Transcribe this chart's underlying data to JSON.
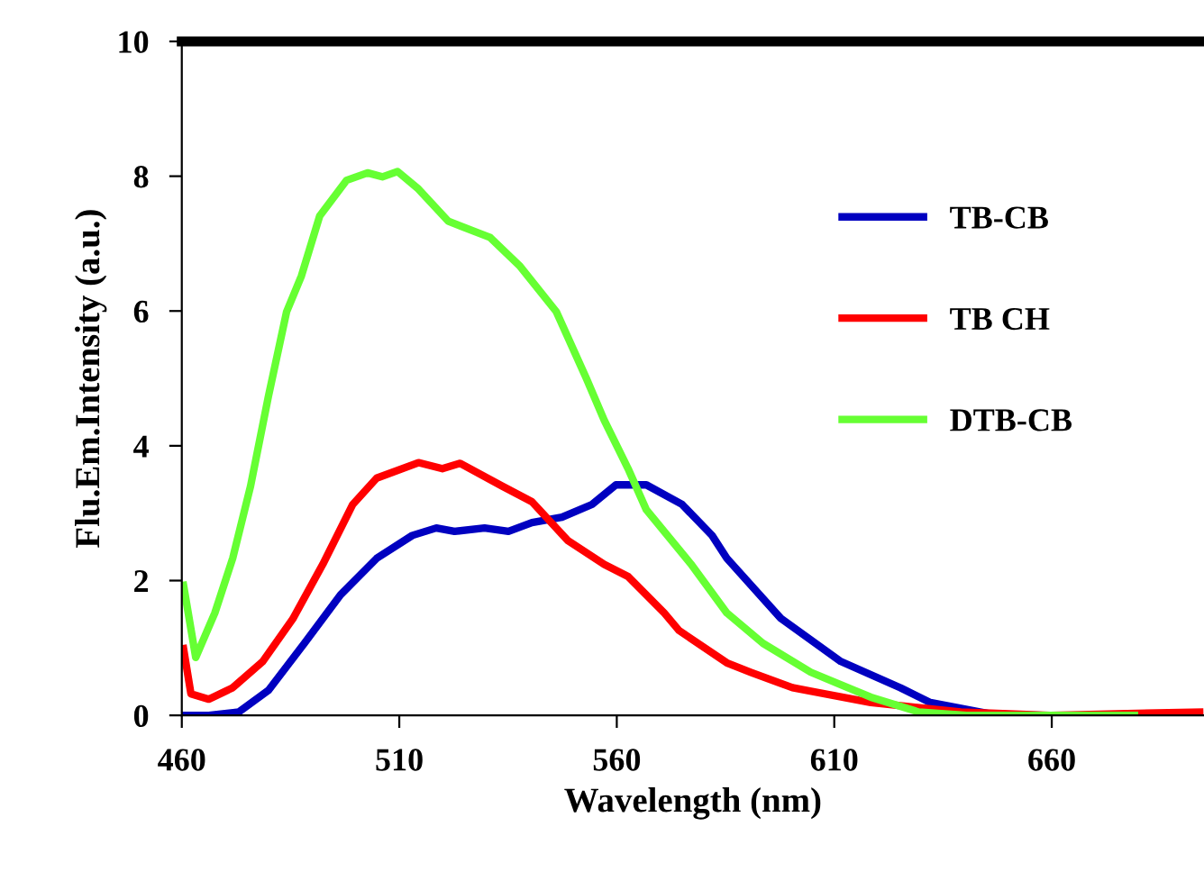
{
  "chart_data": {
    "type": "line",
    "xlabel": "Wavelength (nm)",
    "ylabel": "Flu.Em.Intensity (a.u.)",
    "xlim": [
      460,
      695
    ],
    "xticks": [
      460,
      510,
      560,
      610,
      660
    ],
    "ylim": [
      0,
      10
    ],
    "yticks": [
      0,
      2,
      4,
      6,
      8,
      10
    ],
    "grid": false,
    "legend": "upper right",
    "marker": "none",
    "line_style": "solid",
    "series": [
      {
        "name": "TB-CB",
        "color": "#0000c0",
        "x": [
          460.3,
          466.2,
          473.1,
          479.9,
          488.2,
          496.5,
          504.8,
          513.0,
          518.5,
          522.7,
          529.6,
          535.1,
          540.5,
          547.4,
          554.3,
          559.8,
          566.8,
          575.0,
          581.9,
          585.3,
          597.7,
          611.5,
          625.2,
          632.1,
          645.9,
          657
        ],
        "values": [
          0,
          0,
          0.05,
          0.37,
          1.07,
          1.79,
          2.33,
          2.67,
          2.78,
          2.73,
          2.78,
          2.73,
          2.86,
          2.94,
          3.13,
          3.42,
          3.42,
          3.13,
          2.67,
          2.33,
          1.44,
          0.8,
          0.41,
          0.19,
          0.02,
          0
        ]
      },
      {
        "name": "TB CH",
        "color": "#ff0000",
        "x": [
          460.4,
          462.1,
          466.2,
          471.7,
          478.6,
          485.5,
          492.4,
          499.3,
          504.8,
          514.4,
          519.9,
          524.0,
          533.7,
          540.5,
          548.8,
          557.1,
          562.6,
          570.9,
          574.3,
          585.3,
          590.8,
          600.4,
          618.4,
          639.1,
          659.7,
          694
        ],
        "values": [
          0.99,
          0.32,
          0.24,
          0.41,
          0.8,
          1.43,
          2.24,
          3.13,
          3.52,
          3.75,
          3.66,
          3.74,
          3.4,
          3.17,
          2.59,
          2.24,
          2.06,
          1.52,
          1.26,
          0.78,
          0.64,
          0.41,
          0.19,
          0.05,
          0,
          0.05
        ]
      },
      {
        "name": "DTB-CB",
        "color": "#66ff33",
        "x": [
          460.4,
          463.2,
          467.6,
          471.7,
          475.8,
          479.9,
          484.1,
          487.5,
          491.7,
          497.9,
          502.7,
          506.1,
          509.6,
          514.4,
          521.3,
          530.9,
          537.8,
          546.1,
          553.0,
          557.1,
          562.6,
          566.8,
          577.0,
          585.3,
          593.6,
          604.6,
          618.4,
          629.4,
          640.4,
          679
        ],
        "values": [
          1.93,
          0.86,
          1.52,
          2.33,
          3.4,
          4.73,
          5.99,
          6.52,
          7.41,
          7.94,
          8.05,
          7.99,
          8.07,
          7.81,
          7.33,
          7.09,
          6.66,
          5.99,
          5.0,
          4.38,
          3.66,
          3.05,
          2.25,
          1.52,
          1.07,
          0.64,
          0.27,
          0.05,
          0,
          0
        ]
      }
    ]
  }
}
